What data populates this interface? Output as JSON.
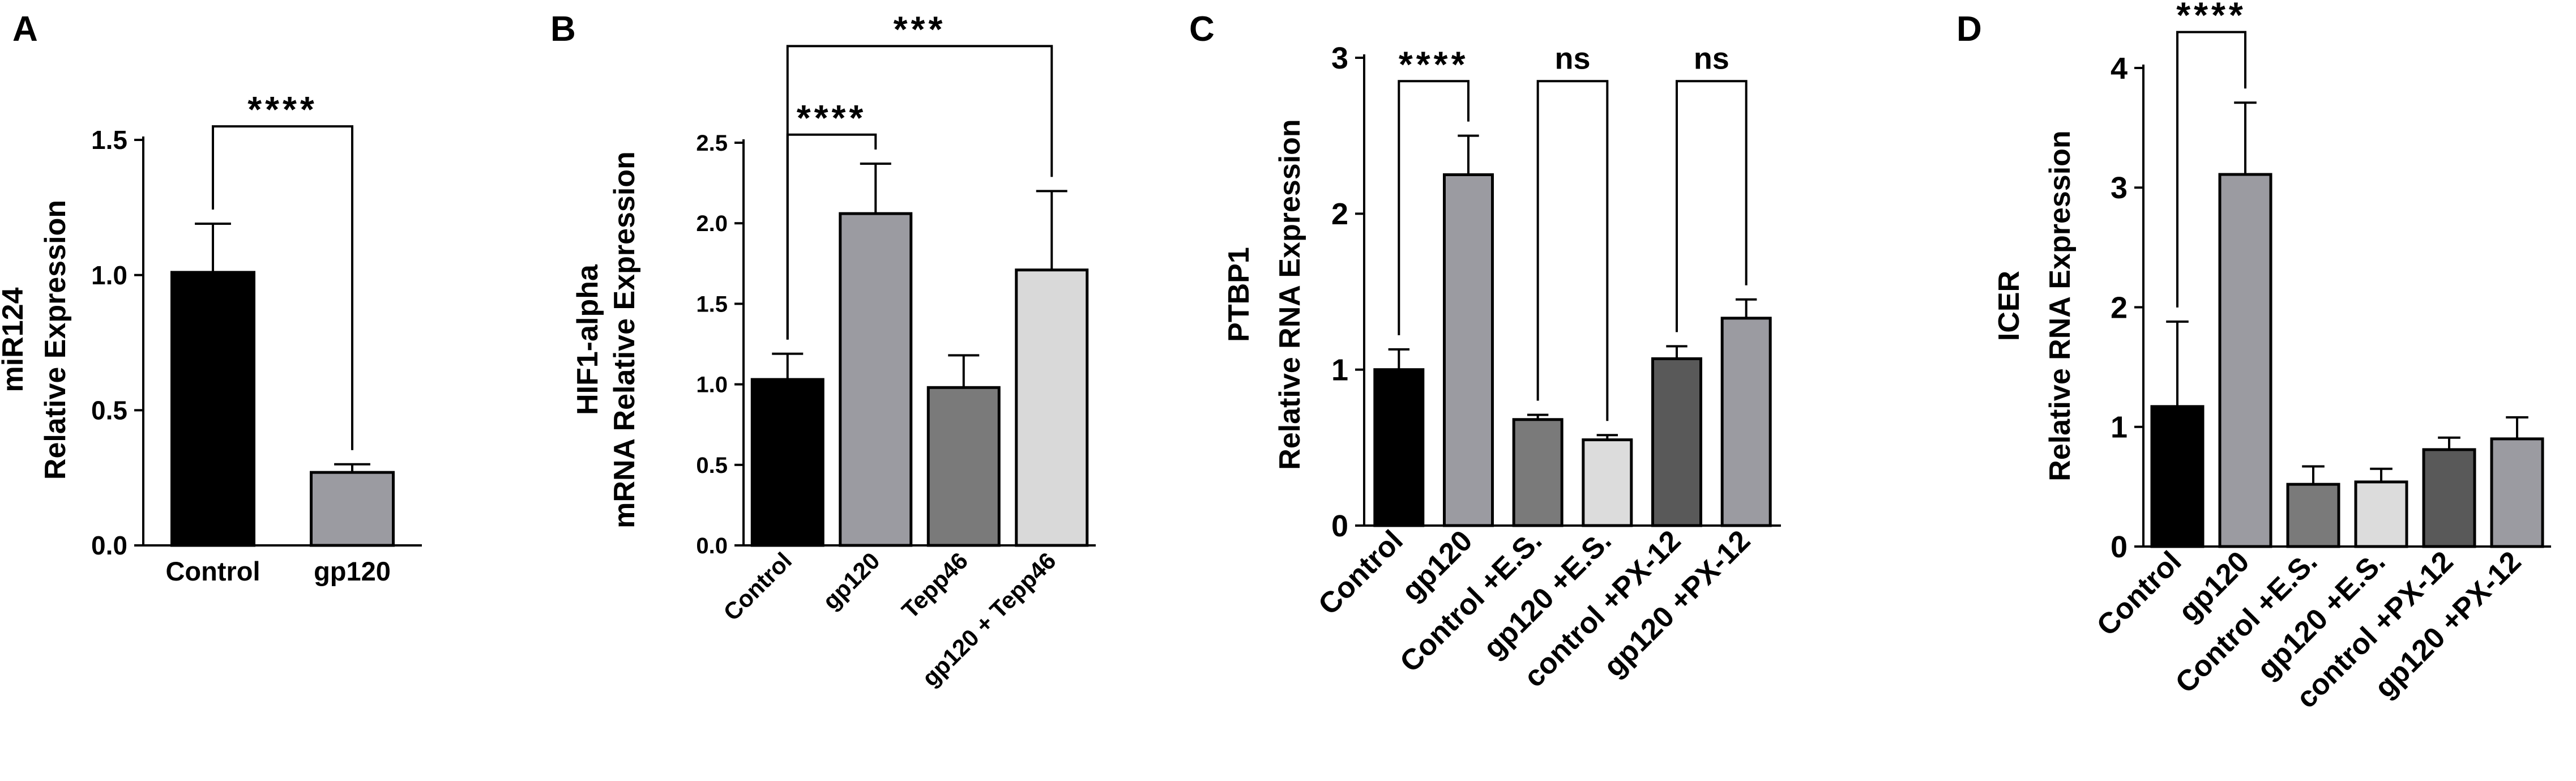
{
  "colors": {
    "black": "#000000",
    "dark_gray": "#7a7a7a",
    "mid_gray": "#9b9ba1",
    "light_gray": "#d9d9d9",
    "charcoal": "#595959",
    "lighter_gray": "#dcdcdc",
    "axis": "#000000"
  },
  "chart_data": [
    {
      "id": "A",
      "panel_label": "A",
      "type": "bar",
      "title": "",
      "ylabel_lines": [
        "miR124",
        "Relative Expression"
      ],
      "ylim": [
        0,
        1.5
      ],
      "yticks": [
        "0.0",
        "0.5",
        "1.0",
        "1.5"
      ],
      "tick_values": [
        0,
        0.5,
        1.0,
        1.5
      ],
      "categories": [
        "Control",
        "gp120"
      ],
      "values": [
        1.01,
        0.27
      ],
      "errors": [
        0.18,
        0.03
      ],
      "bar_colors": [
        "#000000",
        "#9b9ba1"
      ],
      "xtick_rotation": 0,
      "significance": [
        {
          "from": 0,
          "to": 1,
          "label": "****",
          "y": 1.55
        }
      ]
    },
    {
      "id": "B",
      "panel_label": "B",
      "type": "bar",
      "title": "",
      "ylabel_lines": [
        "HIF1-alpha",
        "mRNA Relative Expression"
      ],
      "ylim": [
        0,
        2.5
      ],
      "yticks": [
        "0.0",
        "0.5",
        "1.0",
        "1.5",
        "2.0",
        "2.5"
      ],
      "tick_values": [
        0,
        0.5,
        1.0,
        1.5,
        2.0,
        2.5
      ],
      "categories": [
        "Control",
        "gp120",
        "Tepp46",
        "gp120 + Tepp46"
      ],
      "values": [
        1.03,
        2.06,
        0.98,
        1.71
      ],
      "errors": [
        0.16,
        0.31,
        0.2,
        0.49
      ],
      "bar_colors": [
        "#000000",
        "#9b9ba1",
        "#7a7a7a",
        "#d9d9d9"
      ],
      "xtick_rotation": -45,
      "significance": [
        {
          "from": 0,
          "to": 1,
          "label": "****",
          "y": 2.55
        },
        {
          "from": 0,
          "to": 3,
          "label": "***",
          "y": 3.1
        }
      ]
    },
    {
      "id": "C",
      "panel_label": "C",
      "type": "bar",
      "title": "",
      "ylabel_lines": [
        "PTBP1",
        "Relative RNA Expression"
      ],
      "ylim": [
        0,
        3
      ],
      "yticks": [
        "0",
        "1",
        "2",
        "3"
      ],
      "tick_values": [
        0,
        1,
        2,
        3
      ],
      "categories": [
        "Control",
        "gp120",
        "Control +E.S.",
        "gp120 +E.S.",
        "control +PX-12",
        "gp120 +PX-12"
      ],
      "values": [
        1.0,
        2.25,
        0.68,
        0.55,
        1.07,
        1.33
      ],
      "errors": [
        0.13,
        0.25,
        0.03,
        0.03,
        0.08,
        0.12
      ],
      "bar_colors": [
        "#000000",
        "#9b9ba1",
        "#7a7a7a",
        "#dcdcdc",
        "#595959",
        "#9b9ba1"
      ],
      "xtick_rotation": -45,
      "significance": [
        {
          "from": 0,
          "to": 1,
          "label": "****",
          "y": 2.85
        },
        {
          "from": 2,
          "to": 3,
          "label": "ns",
          "y": 2.85
        },
        {
          "from": 4,
          "to": 5,
          "label": "ns",
          "y": 2.85
        }
      ]
    },
    {
      "id": "D",
      "panel_label": "D",
      "type": "bar",
      "title": "",
      "ylabel_lines": [
        "ICER",
        "Relative RNA Expression"
      ],
      "ylim": [
        0,
        4
      ],
      "yticks": [
        "0",
        "1",
        "2",
        "3",
        "4"
      ],
      "tick_values": [
        0,
        1,
        2,
        3,
        4
      ],
      "categories": [
        "Control",
        "gp120",
        "Control +E.S.",
        "gp120 +E.S.",
        "control +PX-12",
        "gp120 +PX-12"
      ],
      "values": [
        1.17,
        3.11,
        0.52,
        0.54,
        0.81,
        0.9
      ],
      "errors": [
        0.71,
        0.6,
        0.15,
        0.11,
        0.1,
        0.18
      ],
      "bar_colors": [
        "#000000",
        "#9b9ba1",
        "#7a7a7a",
        "#dcdcdc",
        "#595959",
        "#9b9ba1"
      ],
      "xtick_rotation": -45,
      "significance": [
        {
          "from": 0,
          "to": 1,
          "label": "****",
          "y": 4.3
        }
      ]
    }
  ]
}
